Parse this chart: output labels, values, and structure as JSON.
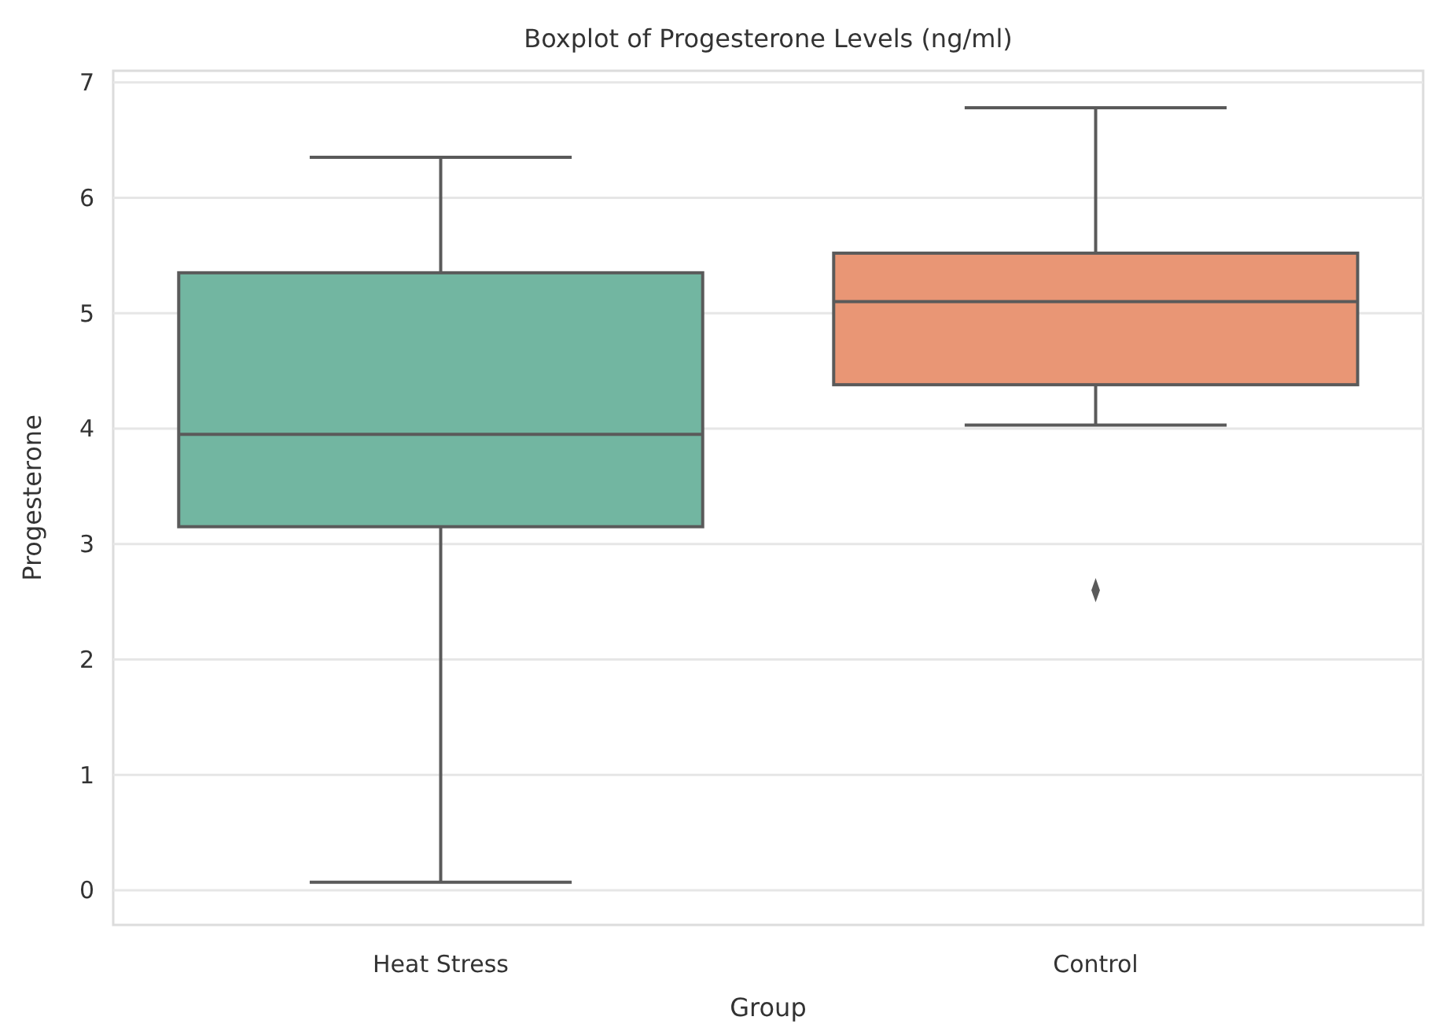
{
  "chart_data": {
    "type": "box",
    "title": "Boxplot of Progesterone Levels (ng/ml)",
    "xlabel": "Group",
    "ylabel": "Progesterone",
    "categories": [
      "Heat Stress",
      "Control"
    ],
    "colors": [
      "#72b6a1",
      "#e99675"
    ],
    "boxes": [
      {
        "low": 0.07,
        "q1": 3.15,
        "median": 3.95,
        "q3": 5.35,
        "high": 6.35
      },
      {
        "low": 4.03,
        "q1": 4.38,
        "median": 5.1,
        "q3": 5.52,
        "high": 6.78,
        "outliers": [
          2.6
        ]
      }
    ],
    "ylim": [
      -0.3,
      7.1
    ],
    "yticks": [
      0,
      1,
      2,
      3,
      4,
      5,
      6,
      7
    ],
    "grid": "y",
    "marker": "diamond"
  }
}
